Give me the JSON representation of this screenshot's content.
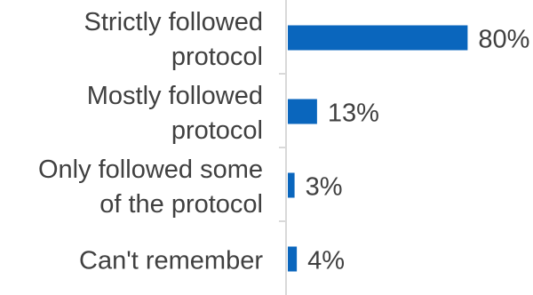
{
  "chart_data": {
    "type": "bar",
    "orientation": "horizontal",
    "categories": [
      [
        "Strictly followed",
        "protocol"
      ],
      [
        "Mostly followed",
        "protocol"
      ],
      [
        "Only followed some",
        "of the protocol"
      ],
      [
        "Can't remember"
      ]
    ],
    "values": [
      80,
      13,
      3,
      4
    ],
    "value_labels": [
      "80%",
      "13%",
      "3%",
      "4%"
    ],
    "value_unit": "%",
    "title": "",
    "xlabel": "",
    "ylabel": "",
    "xlim": [
      0,
      100
    ],
    "grid": false,
    "legend": "none",
    "bar_color": "#0a66bd",
    "axis_color": "#d9d9d9",
    "text_color": "#404040"
  }
}
